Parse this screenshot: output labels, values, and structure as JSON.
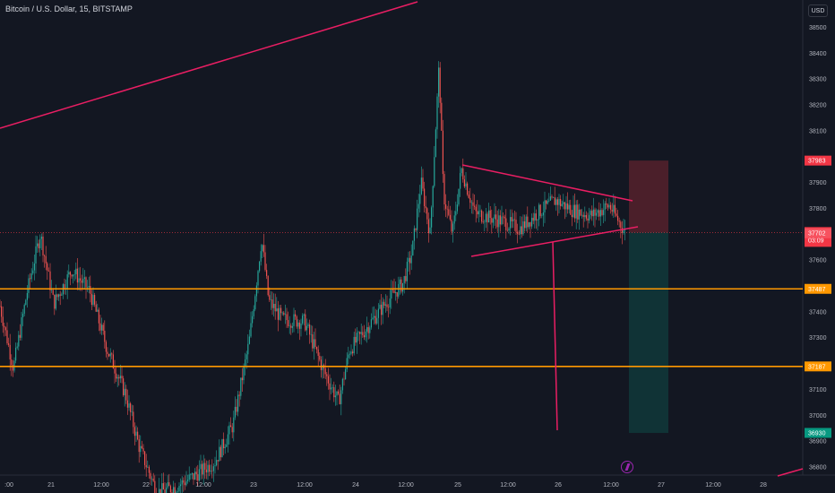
{
  "header": {
    "title": "Bitcoin / U.S. Dollar, 15, BITSTAMP",
    "currency": "USD"
  },
  "chart_data": {
    "type": "candlestick",
    "symbol": "Bitcoin / U.S. Dollar",
    "interval": "15",
    "exchange": "BITSTAMP",
    "ylim": [
      36760,
      38560
    ],
    "y_ticks": [
      38500,
      38400,
      38300,
      38200,
      38100,
      37900,
      37800,
      37700,
      37600,
      37400,
      37300,
      37100,
      37000,
      36900,
      36800
    ],
    "x_ticks": [
      ":00",
      "21",
      "12:00",
      "22",
      "12:00",
      "23",
      "12:00",
      "24",
      "12:00",
      "25",
      "12:00",
      "26",
      "12:00",
      "27",
      "12:00",
      "28"
    ],
    "price_labels": [
      {
        "text": "37983",
        "value": 37983,
        "color": "#f23645"
      },
      {
        "text": "37705",
        "sub": "03:09",
        "value": 37705,
        "color": "#f23645"
      },
      {
        "text": "37702",
        "value": 37702,
        "color": "#f7525f"
      },
      {
        "text": "37487",
        "value": 37487,
        "color": "#ff9800"
      },
      {
        "text": "37187",
        "value": 37187,
        "color": "#ff9800"
      },
      {
        "text": "36930",
        "value": 36930,
        "color": "#089981"
      }
    ],
    "horizontal_levels": [
      37487,
      37187
    ],
    "position": {
      "entry": 37705,
      "stop": 37983,
      "target": 36930
    },
    "colors": {
      "up": "#26a69a",
      "down": "#ef5350",
      "drawing": "#e91e63",
      "level": "#ff9800"
    }
  }
}
